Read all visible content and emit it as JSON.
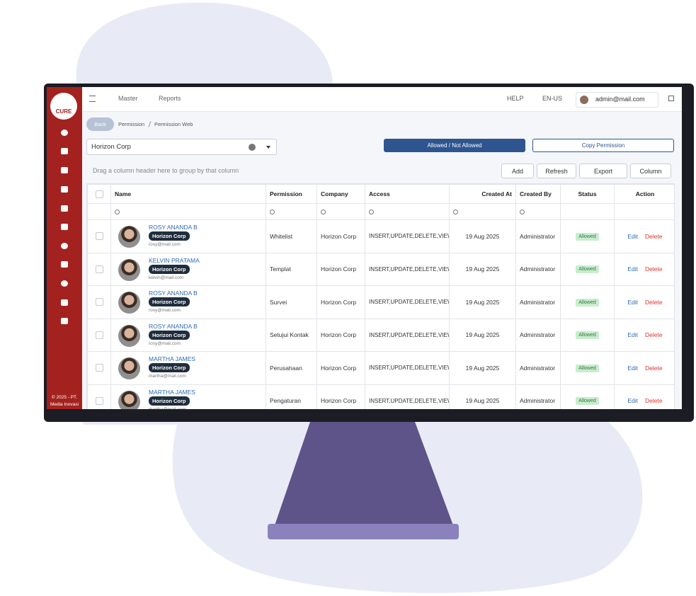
{
  "sidebar": {
    "logo": "CURE",
    "footer": [
      "© 2025 - PT.",
      "Media Inovasi"
    ]
  },
  "topbar": {
    "menu": [
      "Master",
      "Reports"
    ],
    "help": "HELP",
    "language": "EN-US",
    "user": "admin@mail.com"
  },
  "breadcrumb": {
    "back": "Back",
    "items": [
      "Permission",
      "Permission Web"
    ]
  },
  "filter": {
    "company": "Horizon Corp"
  },
  "actions": {
    "toggle": "Allowed / Not Allowed",
    "copy": "Copy Permission"
  },
  "group_hint": "Drag a column header here to group by that column",
  "toolbar": [
    "Add",
    "Refresh",
    "Export",
    "Column"
  ],
  "table": {
    "columns": [
      "Name",
      "Permission",
      "Company",
      "Access",
      "Created At",
      "Created By",
      "Status",
      "Action"
    ],
    "row_actions": {
      "edit": "Edit",
      "delete": "Delete"
    },
    "rows": [
      {
        "name": "ROSY ANANDA B",
        "tag": "Horizon Corp",
        "email": "rosy@mail.com",
        "permission": "Whitelist",
        "company": "Horizon Corp",
        "access": "INSERT,UPDATE,DELETE,VIEW",
        "created_at": "19 Aug 2025",
        "created_by": "Administrator",
        "status": "Allowed"
      },
      {
        "name": "KELVIN PRATAMA",
        "tag": "Horizon Corp",
        "email": "kelvin@mail.com",
        "permission": "Templat",
        "company": "Horizon Corp",
        "access": "INSERT,UPDATE,DELETE,VIEW",
        "created_at": "19 Aug 2025",
        "created_by": "Administrator",
        "status": "Allowed"
      },
      {
        "name": "ROSY ANANDA B",
        "tag": "Horizon Corp",
        "email": "rosy@mail.com",
        "permission": "Survei",
        "company": "Horizon Corp",
        "access": "INSERT,UPDATE,DELETE,VIEW",
        "created_at": "19 Aug 2025",
        "created_by": "Administrator",
        "status": "Allowed"
      },
      {
        "name": "ROSY ANANDA B",
        "tag": "Horizon Corp",
        "email": "rosy@mail.com",
        "permission": "Setujui Kontak",
        "company": "Horizon Corp",
        "access": "INSERT,UPDATE,DELETE,VIEW",
        "created_at": "19 Aug 2025",
        "created_by": "Administrator",
        "status": "Allowed"
      },
      {
        "name": "MARTHA JAMES",
        "tag": "Horizon Corp",
        "email": "martha@mail.com",
        "permission": "Perusahaan",
        "company": "Horizon Corp",
        "access": "INSERT,UPDATE,DELETE,VIEW",
        "created_at": "19 Aug 2025",
        "created_by": "Administrator",
        "status": "Allowed"
      },
      {
        "name": "MARTHA JAMES",
        "tag": "Horizon Corp",
        "email": "martha@mail.com",
        "permission": "Pengaturan",
        "company": "Horizon Corp",
        "access": "INSERT,UPDATE,DELETE,VIEW",
        "created_at": "19 Aug 2025",
        "created_by": "Administrator",
        "status": "Allowed"
      }
    ]
  }
}
